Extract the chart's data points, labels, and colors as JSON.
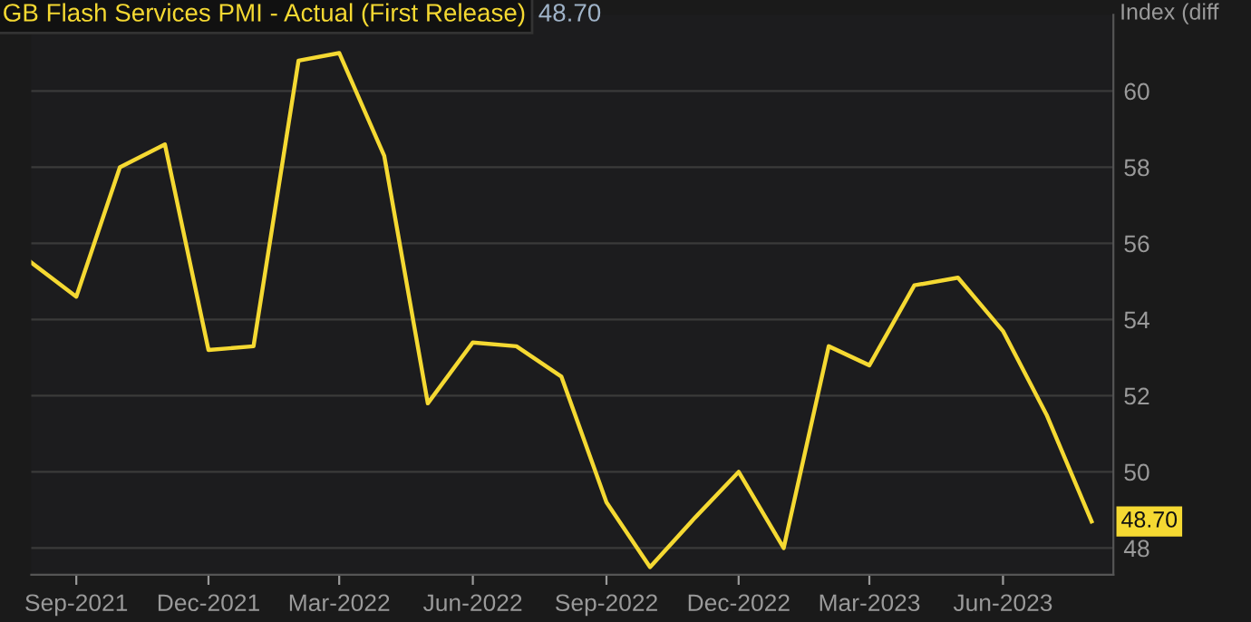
{
  "chart_data": {
    "type": "line",
    "title": "GB Flash Services PMI - Actual (First Release)",
    "ylabel": "Index (diff",
    "annotations": [
      "48.70"
    ],
    "x": [
      "2021-08-01",
      "2021-09-01",
      "2021-10-01",
      "2021-11-01",
      "2021-12-01",
      "2022-01-01",
      "2022-02-01",
      "2022-03-01",
      "2022-04-01",
      "2022-05-01",
      "2022-06-01",
      "2022-07-01",
      "2022-08-01",
      "2022-09-01",
      "2022-10-01",
      "2022-11-01",
      "2022-12-01",
      "2023-01-01",
      "2023-02-01",
      "2023-03-01",
      "2023-04-01",
      "2023-05-01",
      "2023-06-01",
      "2023-07-01",
      "2023-08-01"
    ],
    "series": [
      {
        "color": "#f5d932",
        "values": [
          55.5,
          54.6,
          58.0,
          58.6,
          53.2,
          53.3,
          60.8,
          61.0,
          58.3,
          51.8,
          53.4,
          53.3,
          52.5,
          49.2,
          47.5,
          48.8,
          50.0,
          48.0,
          53.3,
          52.8,
          54.9,
          55.1,
          53.7,
          51.5,
          48.7
        ],
        "value_labels": [
          null,
          null,
          null,
          null,
          null,
          null,
          null,
          null,
          null,
          null,
          null,
          null,
          null,
          null,
          null,
          null,
          null,
          null,
          null,
          null,
          null,
          null,
          null,
          null,
          "48.70"
        ]
      }
    ],
    "xlim": [
      "2021-08-01",
      "2023-08-16"
    ],
    "xticks": [
      {
        "value": "2021-09-01",
        "label": "Sep-2021"
      },
      {
        "value": "2021-12-01",
        "label": "Dec-2021"
      },
      {
        "value": "2022-03-01",
        "label": "Mar-2022"
      },
      {
        "value": "2022-06-01",
        "label": "Jun-2022"
      },
      {
        "value": "2022-09-01",
        "label": "Sep-2022"
      },
      {
        "value": "2022-12-01",
        "label": "Dec-2022"
      },
      {
        "value": "2023-03-01",
        "label": "Mar-2023"
      },
      {
        "value": "2023-06-01",
        "label": "Jun-2023"
      }
    ],
    "ylim": [
      47.3,
      62.0
    ],
    "yticks": [
      48,
      50,
      52,
      54,
      56,
      58,
      60
    ],
    "grid": "y",
    "legend": false,
    "marker": "none",
    "line_style": "solid"
  }
}
